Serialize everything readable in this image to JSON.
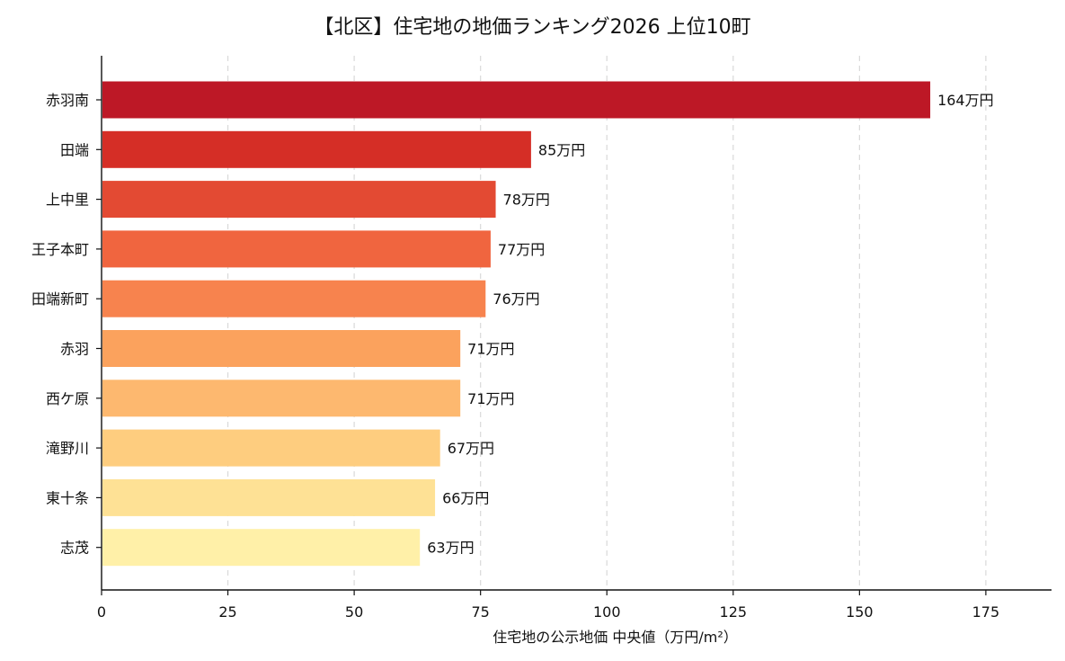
{
  "chart_data": {
    "type": "bar",
    "orientation": "horizontal",
    "title": "【北区】住宅地の地価ランキング2026 上位10町",
    "xlabel": "住宅地の公示地価 中央値（万円/m²）",
    "ylabel": "",
    "xlim": [
      0,
      188
    ],
    "xticks": [
      "0",
      "25",
      "50",
      "75",
      "100",
      "125",
      "150",
      "175"
    ],
    "grid": "vertical-dashed",
    "categories": [
      "赤羽南",
      "田端",
      "上中里",
      "王子本町",
      "田端新町",
      "赤羽",
      "西ケ原",
      "滝野川",
      "東十条",
      "志茂"
    ],
    "values": [
      164,
      85,
      78,
      77,
      76,
      71,
      71,
      67,
      66,
      63
    ],
    "data_labels": [
      "164万円",
      "85万円",
      "78万円",
      "77万円",
      "76万円",
      "71万円",
      "71万円",
      "67万円",
      "66万円",
      "63万円"
    ],
    "colors": [
      "#bd1826",
      "#d52e26",
      "#e34a33",
      "#f0653f",
      "#f7834e",
      "#fba25d",
      "#fdb86f",
      "#fecd7f",
      "#fee195",
      "#fff0a8"
    ]
  }
}
